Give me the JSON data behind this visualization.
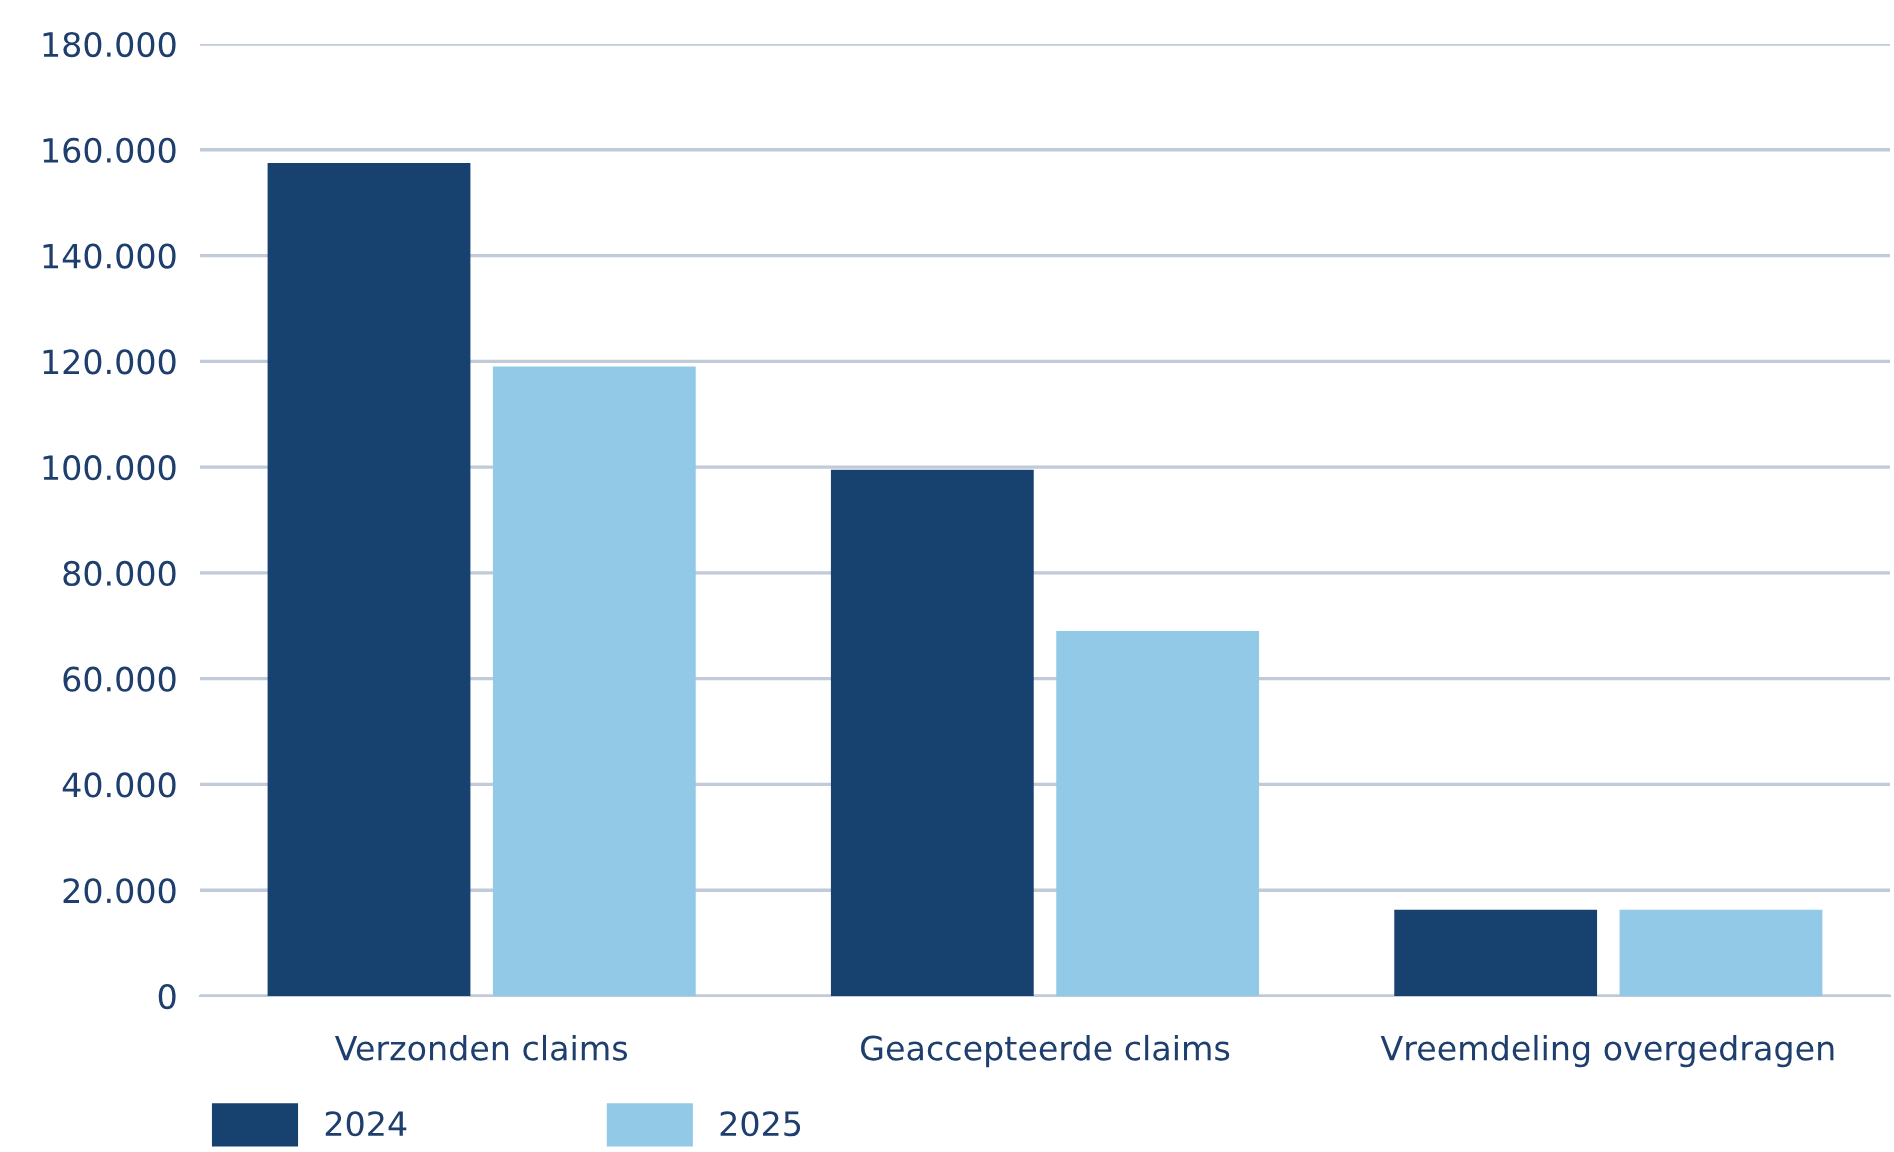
{
  "chart_data": {
    "type": "bar",
    "categories": [
      "Verzonden claims",
      "Geaccepteerde claims",
      "Vreemdeling overgedragen"
    ],
    "series": [
      {
        "name": "2024",
        "color": "#17416f",
        "values": [
          157500,
          99500,
          16300
        ]
      },
      {
        "name": "2025",
        "color": "#92c9e6",
        "values": [
          119000,
          69000,
          16300
        ]
      }
    ],
    "ylim": [
      0,
      180000
    ],
    "yticks": [
      0,
      {
        "value": 20000,
        "label": "20.000"
      },
      {
        "value": 40000,
        "label": "40.000"
      },
      {
        "value": 60000,
        "label": "60.000"
      },
      {
        "value": 80000,
        "label": "80.000"
      },
      {
        "value": 100000,
        "label": "100.000"
      },
      {
        "value": 120000,
        "label": "120.000"
      },
      {
        "value": 140000,
        "label": "140.000"
      },
      {
        "value": 160000,
        "label": "160.000"
      },
      {
        "value": 180000,
        "label": "180.000"
      }
    ],
    "grid": "y",
    "legend": "bottom left"
  }
}
